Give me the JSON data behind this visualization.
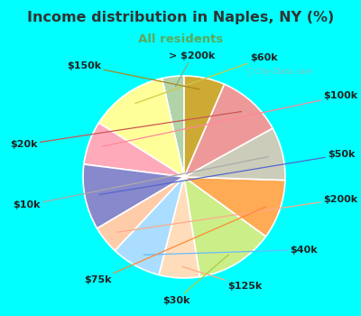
{
  "title": "Income distribution in Naples, NY (%)",
  "subtitle": "All residents",
  "title_color": "#333333",
  "subtitle_color": "#5aaa5a",
  "bg_top": "#00ffff",
  "bg_chart_left": "#c8eedd",
  "bg_chart_right": "#e0f8f0",
  "labels": [
    "> $200k",
    "$60k",
    "$100k",
    "$50k",
    "$200k",
    "$40k",
    "$125k",
    "$30k",
    "$75k",
    "$10k",
    "$20k",
    "$150k"
  ],
  "values": [
    3.5,
    12.5,
    7.0,
    10.5,
    4.5,
    8.0,
    6.5,
    12.5,
    9.5,
    8.5,
    10.5,
    6.5
  ],
  "colors": [
    "#b0d4a8",
    "#ffff99",
    "#ffaabb",
    "#8888cc",
    "#ffccaa",
    "#aaddff",
    "#ffddbb",
    "#ccee88",
    "#ffaa55",
    "#ccccbb",
    "#ee9999",
    "#ccaa33"
  ],
  "line_colors": [
    "#8aaa80",
    "#cccc44",
    "#ff8899",
    "#5566cc",
    "#ffaa88",
    "#66bbff",
    "#ffaa88",
    "#aacc44",
    "#ff8833",
    "#aaaaaa",
    "#cc5555",
    "#aa8822"
  ],
  "startangle": 90,
  "label_fontsize": 8,
  "figsize": [
    4.0,
    3.5
  ],
  "dpi": 100,
  "title_fontsize": 11.5,
  "subtitle_fontsize": 9.5
}
